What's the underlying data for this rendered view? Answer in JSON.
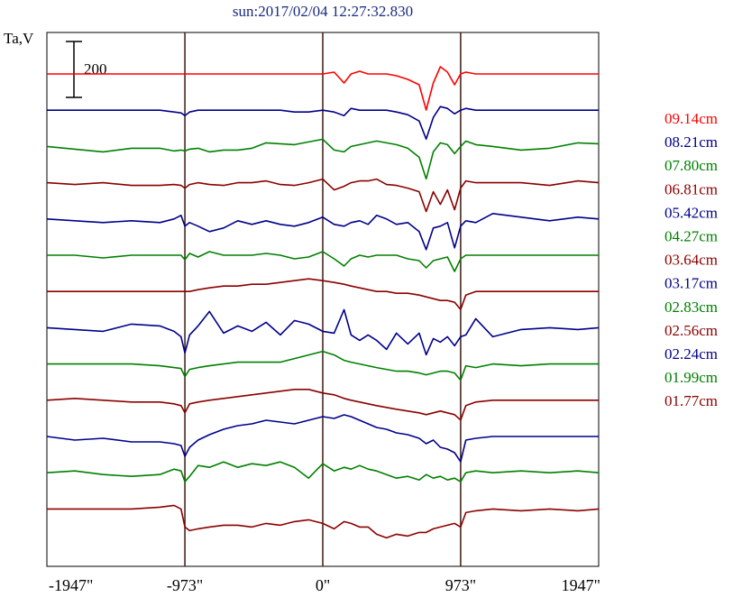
{
  "chart_data": {
    "type": "line",
    "title": "sun:2017/02/04 12:27:32.830",
    "ylabel": "Ta,V",
    "scale_bar": {
      "value": 200,
      "label": "200"
    },
    "xlim": [
      -1947,
      1947
    ],
    "x_ticks": [
      {
        "value": -1947,
        "label": "-1947\""
      },
      {
        "value": -973,
        "label": "-973\""
      },
      {
        "value": 0,
        "label": "0\""
      },
      {
        "value": 973,
        "label": "973\""
      },
      {
        "value": 1947,
        "label": "1947\""
      }
    ],
    "vertical_lines": [
      -973,
      0,
      973
    ],
    "grid": false,
    "legend_position": "right",
    "x": [
      -1947,
      -1750,
      -1550,
      -1350,
      -1150,
      -1050,
      -1000,
      -973,
      -940,
      -880,
      -800,
      -700,
      -600,
      -500,
      -400,
      -300,
      -200,
      -100,
      0,
      80,
      150,
      200,
      260,
      320,
      380,
      450,
      520,
      600,
      680,
      730,
      780,
      830,
      880,
      930,
      973,
      1010,
      1080,
      1200,
      1400,
      1600,
      1800,
      1947
    ],
    "series": [
      {
        "name": "09.14cm",
        "color": "#ff0000",
        "offset": 0,
        "values": [
          0,
          0,
          0,
          0,
          0,
          0,
          0,
          0,
          0,
          0,
          0,
          0,
          0,
          0,
          0,
          0,
          0,
          0,
          0,
          2,
          -10,
          0,
          3,
          0,
          0,
          0,
          -2,
          -6,
          -12,
          -40,
          -10,
          8,
          2,
          -12,
          0,
          2,
          0,
          0,
          0,
          0,
          0,
          0
        ]
      },
      {
        "name": "08.21cm",
        "color": "#00008b",
        "offset": 0,
        "values": [
          0,
          0,
          0,
          0,
          0,
          -2,
          -3,
          -6,
          -2,
          0,
          0,
          0,
          0,
          0,
          0,
          0,
          -2,
          -2,
          0,
          -2,
          -6,
          2,
          0,
          0,
          0,
          0,
          -2,
          -5,
          -12,
          -32,
          -8,
          4,
          2,
          -4,
          0,
          2,
          0,
          0,
          0,
          0,
          0,
          0
        ]
      },
      {
        "name": "07.80cm",
        "color": "#008000",
        "offset": 0,
        "values": [
          0,
          -3,
          -6,
          -2,
          -2,
          -5,
          -4,
          -5,
          -3,
          -2,
          -6,
          -4,
          -4,
          -2,
          4,
          3,
          2,
          5,
          8,
          -4,
          -6,
          0,
          2,
          4,
          6,
          4,
          2,
          -2,
          -12,
          -36,
          -6,
          4,
          2,
          -8,
          0,
          6,
          2,
          0,
          -4,
          -2,
          4,
          3
        ]
      },
      {
        "name": "06.81cm",
        "color": "#8b0000",
        "offset": 0,
        "values": [
          0,
          -2,
          0,
          -3,
          -3,
          -2,
          -3,
          -6,
          -2,
          0,
          -2,
          -3,
          0,
          0,
          2,
          -2,
          -3,
          0,
          4,
          -8,
          -4,
          0,
          2,
          2,
          4,
          -2,
          -3,
          -6,
          -10,
          -32,
          -10,
          -24,
          -8,
          -30,
          -6,
          2,
          0,
          0,
          0,
          -3,
          2,
          0
        ]
      },
      {
        "name": "05.42cm",
        "color": "#00008b",
        "offset": 0,
        "values": [
          0,
          -2,
          -4,
          -2,
          -4,
          0,
          4,
          -8,
          -4,
          -8,
          -14,
          -10,
          -2,
          -6,
          -2,
          -6,
          -8,
          -4,
          2,
          -6,
          -8,
          -4,
          -2,
          -6,
          4,
          0,
          -6,
          -4,
          -14,
          -34,
          -10,
          -8,
          -4,
          -32,
          -8,
          -2,
          -4,
          6,
          2,
          -2,
          2,
          0
        ]
      },
      {
        "name": "04.27cm",
        "color": "#008000",
        "offset": 0,
        "values": [
          0,
          0,
          -3,
          0,
          0,
          0,
          0,
          -5,
          2,
          -2,
          4,
          0,
          0,
          0,
          2,
          0,
          -4,
          -2,
          4,
          -4,
          -12,
          -4,
          0,
          -2,
          0,
          0,
          0,
          -4,
          -6,
          -14,
          -6,
          -4,
          -2,
          -18,
          -4,
          0,
          0,
          0,
          0,
          0,
          0,
          0
        ]
      },
      {
        "name": "03.64cm",
        "color": "#8b0000",
        "offset": 0,
        "values": [
          0,
          0,
          0,
          0,
          0,
          0,
          0,
          0,
          0,
          2,
          4,
          6,
          6,
          8,
          8,
          10,
          12,
          14,
          12,
          10,
          8,
          6,
          4,
          2,
          0,
          0,
          -2,
          -2,
          -4,
          -6,
          -8,
          -10,
          -10,
          -12,
          -20,
          -4,
          0,
          0,
          0,
          0,
          0,
          0
        ]
      },
      {
        "name": "03.17cm",
        "color": "#00008b",
        "offset": 0,
        "values": [
          0,
          -2,
          -4,
          4,
          2,
          -4,
          -10,
          -28,
          -8,
          2,
          18,
          -6,
          2,
          -4,
          6,
          -8,
          8,
          4,
          -4,
          -6,
          20,
          -8,
          -14,
          -8,
          -14,
          -24,
          -6,
          -18,
          -6,
          -30,
          -12,
          -16,
          -10,
          -20,
          -10,
          -8,
          10,
          -10,
          -2,
          0,
          -2,
          0
        ]
      },
      {
        "name": "02.83cm",
        "color": "#008000",
        "offset": 0,
        "values": [
          0,
          0,
          0,
          0,
          -2,
          -4,
          -5,
          -14,
          -6,
          -4,
          -2,
          0,
          2,
          2,
          2,
          2,
          6,
          10,
          14,
          10,
          4,
          2,
          0,
          -2,
          -4,
          -6,
          -8,
          -8,
          -10,
          -12,
          -10,
          -8,
          -8,
          -10,
          -18,
          -2,
          -4,
          0,
          -2,
          0,
          0,
          0
        ]
      },
      {
        "name": "02.56cm",
        "color": "#8b0000",
        "offset": 0,
        "values": [
          0,
          2,
          0,
          -2,
          -2,
          -4,
          -6,
          -14,
          -4,
          -2,
          0,
          2,
          4,
          6,
          8,
          10,
          12,
          12,
          8,
          6,
          2,
          0,
          -2,
          -4,
          -6,
          -8,
          -10,
          -12,
          -14,
          -16,
          -14,
          -12,
          -14,
          -16,
          -22,
          -6,
          -2,
          0,
          0,
          0,
          0,
          0
        ]
      },
      {
        "name": "02.24cm",
        "color": "#00008b",
        "offset": 0,
        "values": [
          0,
          -4,
          -2,
          -6,
          -6,
          -8,
          -10,
          -22,
          -12,
          -4,
          2,
          8,
          12,
          14,
          18,
          16,
          14,
          18,
          22,
          20,
          24,
          22,
          18,
          14,
          10,
          8,
          4,
          2,
          -2,
          -8,
          -4,
          -12,
          -14,
          -18,
          -28,
          -4,
          -2,
          0,
          0,
          0,
          0,
          0
        ]
      },
      {
        "name": "01.99cm",
        "color": "#008000",
        "offset": 0,
        "values": [
          0,
          2,
          -2,
          -4,
          -2,
          4,
          2,
          -10,
          -4,
          8,
          6,
          12,
          6,
          10,
          8,
          12,
          6,
          -6,
          10,
          2,
          6,
          4,
          8,
          4,
          2,
          -2,
          -6,
          -4,
          -8,
          -2,
          -6,
          -4,
          -8,
          -6,
          -10,
          0,
          2,
          0,
          2,
          0,
          2,
          0
        ]
      },
      {
        "name": "01.77cm",
        "color": "#8b0000",
        "offset": 0,
        "values": [
          0,
          0,
          0,
          0,
          2,
          4,
          0,
          -20,
          -24,
          -22,
          -20,
          -18,
          -18,
          -20,
          -16,
          -18,
          -14,
          -12,
          -16,
          -22,
          -14,
          -16,
          -20,
          -20,
          -28,
          -32,
          -28,
          -30,
          -26,
          -26,
          -22,
          -20,
          -18,
          -16,
          -20,
          -4,
          -2,
          0,
          -2,
          0,
          -2,
          0
        ]
      }
    ]
  }
}
